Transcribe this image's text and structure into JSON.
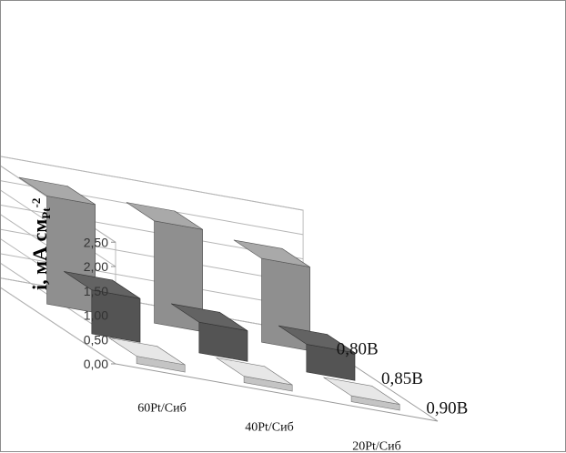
{
  "chart_data": {
    "type": "bar",
    "is_3d": true,
    "title": "",
    "ylabel": "i, мА см",
    "ylabel_sub": "Pt",
    "ylabel_sup": "-2",
    "xlabel": "",
    "categories": [
      "60Pt/Сиб",
      "40Pt/Сиб",
      "20Pt/Сиб"
    ],
    "series": [
      {
        "name": "0,80В",
        "values": [
          2.22,
          2.1,
          1.72
        ],
        "color": "#8f8f8f"
      },
      {
        "name": "0,85В",
        "values": [
          0.9,
          0.63,
          0.57
        ],
        "color": "#545454"
      },
      {
        "name": "0,90В",
        "values": [
          0.15,
          0.13,
          0.12
        ],
        "color": "#c4c4c4"
      }
    ],
    "ylim": [
      0,
      2.5
    ],
    "y_ticks": [
      "0,00",
      "0,50",
      "1,00",
      "1,50",
      "2,00",
      "2,50"
    ],
    "grid": true,
    "legend": "none (series labels on depth axis)"
  }
}
